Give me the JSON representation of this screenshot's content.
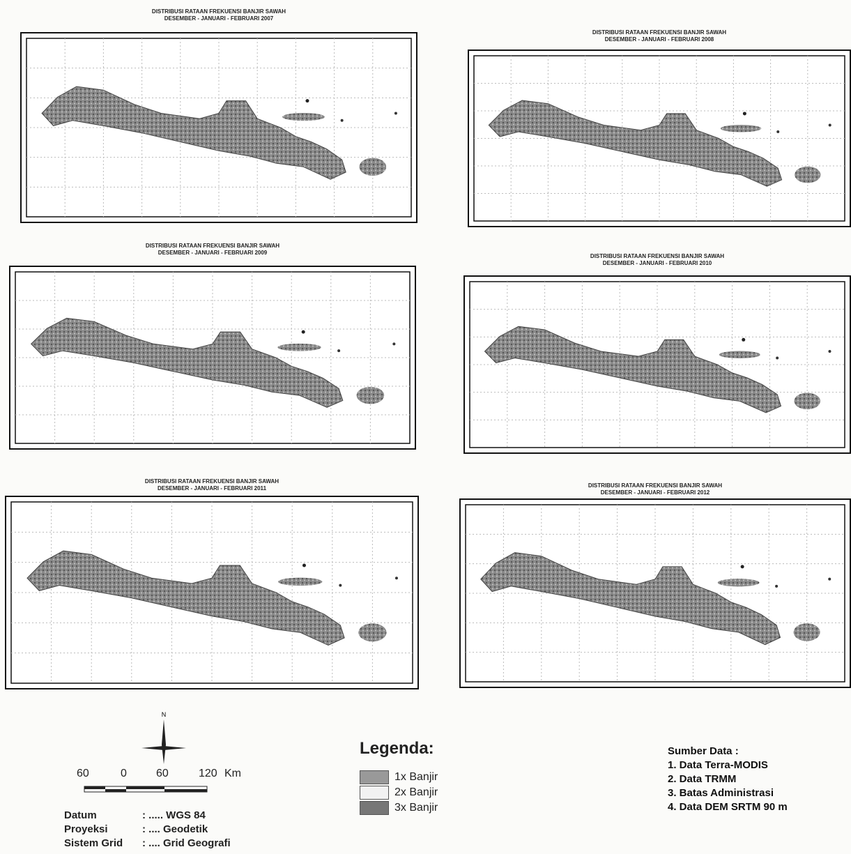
{
  "maps": [
    {
      "title": "DISTRIBUSI RATAAN FREKUENSI BANJIR SAWAH",
      "period": "DESEMBER - JANUARI - FEBRUARI 2007"
    },
    {
      "title": "DISTRIBUSI RATAAN FREKUENSI BANJIR SAWAH",
      "period": "DESEMBER - JANUARI - FEBRUARI 2008"
    },
    {
      "title": "DISTRIBUSI RATAAN FREKUENSI BANJIR SAWAH",
      "period": "DESEMBER - JANUARI - FEBRUARI 2009"
    },
    {
      "title": "DISTRIBUSI RATAAN FREKUENSI BANJIR SAWAH",
      "period": "DESEMBER - JANUARI - FEBRUARI 2010"
    },
    {
      "title": "DISTRIBUSI RATAAN FREKUENSI BANJIR SAWAH",
      "period": "DESEMBER - JANUARI - FEBRUARI 2011"
    },
    {
      "title": "DISTRIBUSI RATAAN FREKUENSI BANJIR SAWAH",
      "period": "DESEMBER - JANUARI - FEBRUARI 2012"
    }
  ],
  "north": "N",
  "scale": {
    "labels": [
      "60",
      "0",
      "60",
      "120"
    ],
    "unit": "Km"
  },
  "info": [
    {
      "label": "Datum",
      "value": ": ..... WGS 84"
    },
    {
      "label": "Proyeksi",
      "value": ": .... Geodetik"
    },
    {
      "label": "Sistem Grid",
      "value": ": .... Grid Geografi"
    }
  ],
  "legend": {
    "title": "Legenda:",
    "items": [
      "1x Banjir",
      "2x Banjir",
      "3x Banjir"
    ]
  },
  "source": {
    "title": "Sumber Data :",
    "items": [
      "1. Data Terra-MODIS",
      "2. Data TRMM",
      "3. Batas Administrasi",
      "4. Data DEM SRTM 90 m"
    ]
  }
}
